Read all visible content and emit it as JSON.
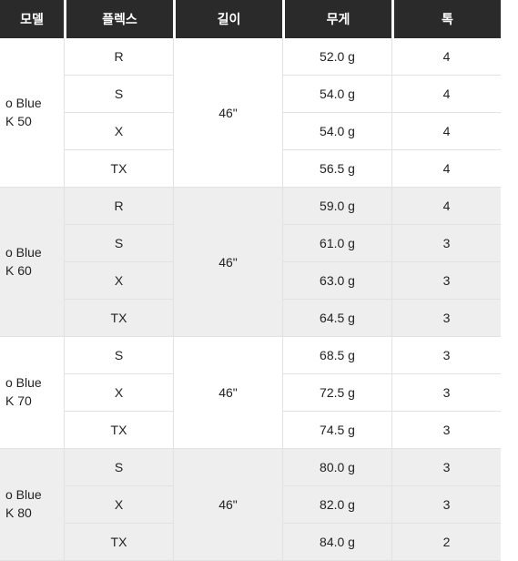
{
  "headers": [
    "모델",
    "플렉스",
    "길이",
    "무게",
    "톡"
  ],
  "groups": [
    {
      "model": "o Blue\nK 50",
      "length": "46\"",
      "alt": false,
      "rows": [
        {
          "flex": "R",
          "weight": "52.0 g",
          "last": "4"
        },
        {
          "flex": "S",
          "weight": "54.0 g",
          "last": "4"
        },
        {
          "flex": "X",
          "weight": "54.0 g",
          "last": "4"
        },
        {
          "flex": "TX",
          "weight": "56.5 g",
          "last": "4"
        }
      ]
    },
    {
      "model": "o Blue\nK 60",
      "length": "46\"",
      "alt": true,
      "rows": [
        {
          "flex": "R",
          "weight": "59.0 g",
          "last": "4"
        },
        {
          "flex": "S",
          "weight": "61.0 g",
          "last": "3"
        },
        {
          "flex": "X",
          "weight": "63.0 g",
          "last": "3"
        },
        {
          "flex": "TX",
          "weight": "64.5 g",
          "last": "3"
        }
      ]
    },
    {
      "model": "o Blue\nK 70",
      "length": "46\"",
      "alt": false,
      "rows": [
        {
          "flex": "S",
          "weight": "68.5 g",
          "last": "3"
        },
        {
          "flex": "X",
          "weight": "72.5 g",
          "last": "3"
        },
        {
          "flex": "TX",
          "weight": "74.5 g",
          "last": "3"
        }
      ]
    },
    {
      "model": "o Blue\nK 80",
      "length": "46\"",
      "alt": true,
      "rows": [
        {
          "flex": "S",
          "weight": "80.0 g",
          "last": "3"
        },
        {
          "flex": "X",
          "weight": "82.0 g",
          "last": "3"
        },
        {
          "flex": "TX",
          "weight": "84.0 g",
          "last": "2"
        }
      ]
    }
  ]
}
